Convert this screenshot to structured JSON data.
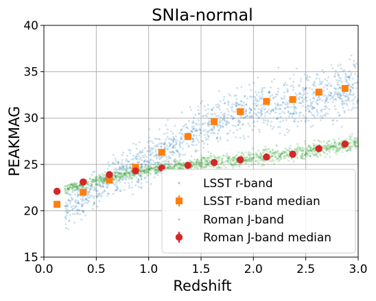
{
  "chart_data": {
    "type": "scatter",
    "title": "SNIa-normal",
    "xlabel": "Redshift",
    "ylabel": "PEAKMAG",
    "xlim": [
      0.0,
      3.0
    ],
    "ylim": [
      15,
      40
    ],
    "xticks": [
      "0.0",
      "0.5",
      "1.0",
      "1.5",
      "2.0",
      "2.5",
      "3.0"
    ],
    "yticks": [
      "15",
      "20",
      "25",
      "30",
      "35",
      "40"
    ],
    "grid": true,
    "legend_position": "lower-right",
    "series": [
      {
        "name": "LSST r-band",
        "kind": "scatter-cloud",
        "color": "#1f77b4",
        "x_range": [
          0.2,
          3.0
        ],
        "trend": {
          "x": [
            0.2,
            0.5,
            0.75,
            1.0,
            1.25,
            1.5,
            1.75,
            2.0,
            2.25,
            2.5,
            2.75,
            3.0
          ],
          "y": [
            20.0,
            22.3,
            24.0,
            25.5,
            27.2,
            28.9,
            30.2,
            31.0,
            31.6,
            32.2,
            32.8,
            33.3
          ]
        },
        "spread": 1.6
      },
      {
        "name": "LSST r-band median",
        "kind": "errorbar",
        "marker": "square",
        "color": "#ff7f0e",
        "x": [
          0.125,
          0.375,
          0.625,
          0.875,
          1.125,
          1.375,
          1.625,
          1.875,
          2.125,
          2.375,
          2.625,
          2.875
        ],
        "y": [
          20.7,
          22.0,
          23.3,
          24.7,
          26.3,
          28.0,
          29.6,
          30.7,
          31.8,
          32.0,
          32.8,
          33.2
        ]
      },
      {
        "name": "Roman J-band",
        "kind": "scatter-cloud",
        "color": "#2ca02c",
        "x_range": [
          0.2,
          3.0
        ],
        "trend": {
          "x": [
            0.2,
            0.5,
            0.75,
            1.0,
            1.25,
            1.5,
            1.75,
            2.0,
            2.25,
            2.5,
            2.75,
            3.0
          ],
          "y": [
            22.4,
            23.2,
            23.9,
            24.4,
            24.8,
            25.1,
            25.4,
            25.7,
            26.0,
            26.4,
            26.9,
            27.4
          ]
        },
        "spread": 0.45
      },
      {
        "name": "Roman J-band median",
        "kind": "errorbar",
        "marker": "circle",
        "color": "#d62728",
        "x": [
          0.125,
          0.375,
          0.625,
          0.875,
          1.125,
          1.375,
          1.625,
          1.875,
          2.125,
          2.375,
          2.625,
          2.875
        ],
        "y": [
          22.1,
          23.1,
          23.9,
          24.3,
          24.6,
          24.9,
          25.2,
          25.5,
          25.8,
          26.1,
          26.7,
          27.2
        ]
      }
    ]
  }
}
